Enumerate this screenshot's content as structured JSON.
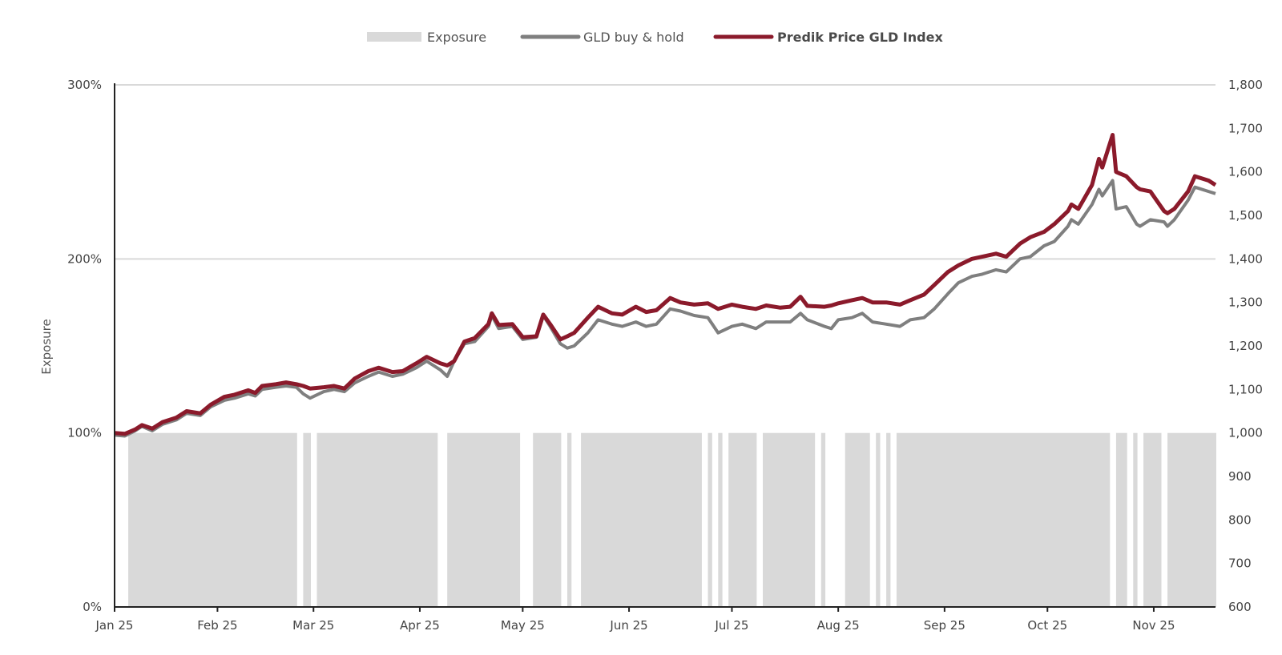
{
  "legend": {
    "exposure_label": "Exposure",
    "buyhold_label": "GLD buy & hold",
    "index_label": "Predik Price GLD Index"
  },
  "colors": {
    "exposure": "#d9d9d9",
    "buyhold": "#7f7f7f",
    "index": "#8b1a2b",
    "grid": "#d9d9d9",
    "axis": "#222222"
  },
  "chart_data": {
    "type": "line",
    "xlabel": "",
    "ylabel": "Exposure",
    "ylim_left": [
      0,
      300
    ],
    "ylim_right": [
      600,
      1800
    ],
    "y_left_ticks": [
      "0%",
      "100%",
      "200%",
      "300%"
    ],
    "y_right_ticks": [
      "600",
      "700",
      "800",
      "900",
      "1,000",
      "1,100",
      "1,200",
      "1,300",
      "1,400",
      "1,500",
      "1,600",
      "1,700",
      "1,800"
    ],
    "x_range": [
      "2025-01-02",
      "2025-11-19"
    ],
    "x_ticks": [
      {
        "date": "2025-01-01",
        "label": "Jan 25"
      },
      {
        "date": "2025-02-01",
        "label": "Feb 25"
      },
      {
        "date": "2025-03-01",
        "label": "Mar 25"
      },
      {
        "date": "2025-04-01",
        "label": "Apr 25"
      },
      {
        "date": "2025-05-01",
        "label": "May 25"
      },
      {
        "date": "2025-06-01",
        "label": "Jun 25"
      },
      {
        "date": "2025-07-01",
        "label": "Jul 25"
      },
      {
        "date": "2025-08-01",
        "label": "Aug 25"
      },
      {
        "date": "2025-09-01",
        "label": "Sep 25"
      },
      {
        "date": "2025-10-01",
        "label": "Oct 25"
      },
      {
        "date": "2025-11-01",
        "label": "Nov 25"
      }
    ],
    "grid": true,
    "legend_position": "top-center",
    "exposure_on": [
      [
        "2025-01-06",
        "2025-02-24"
      ],
      [
        "2025-02-26",
        "2025-02-28"
      ],
      [
        "2025-03-02",
        "2025-04-06"
      ],
      [
        "2025-04-09",
        "2025-04-30"
      ],
      [
        "2025-05-04",
        "2025-05-12"
      ],
      [
        "2025-05-14",
        "2025-05-15"
      ],
      [
        "2025-05-18",
        "2025-06-22"
      ],
      [
        "2025-06-24",
        "2025-06-25"
      ],
      [
        "2025-06-27",
        "2025-06-28"
      ],
      [
        "2025-06-30",
        "2025-07-08"
      ],
      [
        "2025-07-10",
        "2025-07-25"
      ],
      [
        "2025-07-27",
        "2025-07-28"
      ],
      [
        "2025-08-03",
        "2025-08-10"
      ],
      [
        "2025-08-12",
        "2025-08-13"
      ],
      [
        "2025-08-15",
        "2025-08-16"
      ],
      [
        "2025-08-18",
        "2025-10-19"
      ],
      [
        "2025-10-21",
        "2025-10-24"
      ],
      [
        "2025-10-26",
        "2025-10-27"
      ],
      [
        "2025-10-29",
        "2025-11-03"
      ],
      [
        "2025-11-05",
        "2025-11-19"
      ]
    ],
    "series": [
      {
        "name": "GLD buy & hold",
        "axis": "right",
        "points": [
          [
            "2025-01-02",
            995
          ],
          [
            "2025-01-05",
            993
          ],
          [
            "2025-01-08",
            1005
          ],
          [
            "2025-01-10",
            1015
          ],
          [
            "2025-01-13",
            1005
          ],
          [
            "2025-01-16",
            1020
          ],
          [
            "2025-01-20",
            1030
          ],
          [
            "2025-01-23",
            1045
          ],
          [
            "2025-01-27",
            1040
          ],
          [
            "2025-01-30",
            1060
          ],
          [
            "2025-02-03",
            1075
          ],
          [
            "2025-02-06",
            1080
          ],
          [
            "2025-02-10",
            1090
          ],
          [
            "2025-02-12",
            1085
          ],
          [
            "2025-02-14",
            1100
          ],
          [
            "2025-02-18",
            1105
          ],
          [
            "2025-02-21",
            1108
          ],
          [
            "2025-02-24",
            1105
          ],
          [
            "2025-02-26",
            1090
          ],
          [
            "2025-02-28",
            1080
          ],
          [
            "2025-03-04",
            1095
          ],
          [
            "2025-03-07",
            1100
          ],
          [
            "2025-03-10",
            1095
          ],
          [
            "2025-03-13",
            1115
          ],
          [
            "2025-03-17",
            1130
          ],
          [
            "2025-03-20",
            1140
          ],
          [
            "2025-03-24",
            1130
          ],
          [
            "2025-03-27",
            1135
          ],
          [
            "2025-03-31",
            1150
          ],
          [
            "2025-04-03",
            1165
          ],
          [
            "2025-04-07",
            1145
          ],
          [
            "2025-04-09",
            1130
          ],
          [
            "2025-04-11",
            1165
          ],
          [
            "2025-04-14",
            1205
          ],
          [
            "2025-04-17",
            1210
          ],
          [
            "2025-04-21",
            1245
          ],
          [
            "2025-04-22",
            1270
          ],
          [
            "2025-04-24",
            1240
          ],
          [
            "2025-04-28",
            1245
          ],
          [
            "2025-05-01",
            1215
          ],
          [
            "2025-05-05",
            1220
          ],
          [
            "2025-05-07",
            1270
          ],
          [
            "2025-05-09",
            1245
          ],
          [
            "2025-05-12",
            1205
          ],
          [
            "2025-05-14",
            1195
          ],
          [
            "2025-05-16",
            1200
          ],
          [
            "2025-05-20",
            1230
          ],
          [
            "2025-05-23",
            1260
          ],
          [
            "2025-05-27",
            1250
          ],
          [
            "2025-05-30",
            1245
          ],
          [
            "2025-06-03",
            1255
          ],
          [
            "2025-06-06",
            1245
          ],
          [
            "2025-06-09",
            1250
          ],
          [
            "2025-06-13",
            1285
          ],
          [
            "2025-06-16",
            1280
          ],
          [
            "2025-06-20",
            1270
          ],
          [
            "2025-06-24",
            1265
          ],
          [
            "2025-06-27",
            1230
          ],
          [
            "2025-07-01",
            1245
          ],
          [
            "2025-07-04",
            1250
          ],
          [
            "2025-07-08",
            1240
          ],
          [
            "2025-07-11",
            1255
          ],
          [
            "2025-07-15",
            1255
          ],
          [
            "2025-07-18",
            1255
          ],
          [
            "2025-07-21",
            1275
          ],
          [
            "2025-07-23",
            1260
          ],
          [
            "2025-07-28",
            1245
          ],
          [
            "2025-07-30",
            1240
          ],
          [
            "2025-08-01",
            1260
          ],
          [
            "2025-08-05",
            1265
          ],
          [
            "2025-08-08",
            1275
          ],
          [
            "2025-08-11",
            1255
          ],
          [
            "2025-08-15",
            1250
          ],
          [
            "2025-08-19",
            1245
          ],
          [
            "2025-08-22",
            1260
          ],
          [
            "2025-08-26",
            1265
          ],
          [
            "2025-08-29",
            1285
          ],
          [
            "2025-09-02",
            1320
          ],
          [
            "2025-09-05",
            1345
          ],
          [
            "2025-09-09",
            1360
          ],
          [
            "2025-09-12",
            1365
          ],
          [
            "2025-09-16",
            1375
          ],
          [
            "2025-09-19",
            1370
          ],
          [
            "2025-09-23",
            1400
          ],
          [
            "2025-09-26",
            1405
          ],
          [
            "2025-09-30",
            1430
          ],
          [
            "2025-10-03",
            1440
          ],
          [
            "2025-10-07",
            1475
          ],
          [
            "2025-10-08",
            1490
          ],
          [
            "2025-10-10",
            1480
          ],
          [
            "2025-10-14",
            1525
          ],
          [
            "2025-10-16",
            1560
          ],
          [
            "2025-10-17",
            1545
          ],
          [
            "2025-10-20",
            1580
          ],
          [
            "2025-10-21",
            1515
          ],
          [
            "2025-10-24",
            1520
          ],
          [
            "2025-10-27",
            1480
          ],
          [
            "2025-10-28",
            1475
          ],
          [
            "2025-10-31",
            1490
          ],
          [
            "2025-11-04",
            1485
          ],
          [
            "2025-11-05",
            1475
          ],
          [
            "2025-11-07",
            1490
          ],
          [
            "2025-11-11",
            1535
          ],
          [
            "2025-11-13",
            1565
          ],
          [
            "2025-11-17",
            1555
          ],
          [
            "2025-11-19",
            1550
          ]
        ]
      },
      {
        "name": "Predik Price GLD Index",
        "axis": "right",
        "points": [
          [
            "2025-01-02",
            1000
          ],
          [
            "2025-01-05",
            998
          ],
          [
            "2025-01-08",
            1008
          ],
          [
            "2025-01-10",
            1018
          ],
          [
            "2025-01-13",
            1010
          ],
          [
            "2025-01-16",
            1025
          ],
          [
            "2025-01-20",
            1035
          ],
          [
            "2025-01-23",
            1050
          ],
          [
            "2025-01-27",
            1045
          ],
          [
            "2025-01-30",
            1065
          ],
          [
            "2025-02-03",
            1083
          ],
          [
            "2025-02-06",
            1088
          ],
          [
            "2025-02-10",
            1098
          ],
          [
            "2025-02-12",
            1092
          ],
          [
            "2025-02-14",
            1108
          ],
          [
            "2025-02-18",
            1112
          ],
          [
            "2025-02-21",
            1116
          ],
          [
            "2025-02-24",
            1112
          ],
          [
            "2025-02-26",
            1108
          ],
          [
            "2025-02-28",
            1102
          ],
          [
            "2025-03-04",
            1105
          ],
          [
            "2025-03-07",
            1108
          ],
          [
            "2025-03-10",
            1102
          ],
          [
            "2025-03-13",
            1125
          ],
          [
            "2025-03-17",
            1142
          ],
          [
            "2025-03-20",
            1150
          ],
          [
            "2025-03-24",
            1140
          ],
          [
            "2025-03-27",
            1142
          ],
          [
            "2025-03-31",
            1160
          ],
          [
            "2025-04-03",
            1175
          ],
          [
            "2025-04-07",
            1160
          ],
          [
            "2025-04-09",
            1155
          ],
          [
            "2025-04-11",
            1165
          ],
          [
            "2025-04-14",
            1210
          ],
          [
            "2025-04-17",
            1218
          ],
          [
            "2025-04-21",
            1250
          ],
          [
            "2025-04-22",
            1275
          ],
          [
            "2025-04-24",
            1248
          ],
          [
            "2025-04-28",
            1250
          ],
          [
            "2025-05-01",
            1220
          ],
          [
            "2025-05-05",
            1222
          ],
          [
            "2025-05-07",
            1272
          ],
          [
            "2025-05-09",
            1250
          ],
          [
            "2025-05-12",
            1215
          ],
          [
            "2025-05-14",
            1222
          ],
          [
            "2025-05-16",
            1230
          ],
          [
            "2025-05-20",
            1265
          ],
          [
            "2025-05-23",
            1290
          ],
          [
            "2025-05-27",
            1275
          ],
          [
            "2025-05-30",
            1272
          ],
          [
            "2025-06-03",
            1290
          ],
          [
            "2025-06-06",
            1278
          ],
          [
            "2025-06-09",
            1282
          ],
          [
            "2025-06-13",
            1310
          ],
          [
            "2025-06-16",
            1300
          ],
          [
            "2025-06-20",
            1295
          ],
          [
            "2025-06-24",
            1298
          ],
          [
            "2025-06-27",
            1285
          ],
          [
            "2025-07-01",
            1295
          ],
          [
            "2025-07-04",
            1290
          ],
          [
            "2025-07-08",
            1285
          ],
          [
            "2025-07-11",
            1293
          ],
          [
            "2025-07-15",
            1288
          ],
          [
            "2025-07-18",
            1290
          ],
          [
            "2025-07-21",
            1313
          ],
          [
            "2025-07-23",
            1292
          ],
          [
            "2025-07-28",
            1290
          ],
          [
            "2025-07-30",
            1293
          ],
          [
            "2025-08-01",
            1298
          ],
          [
            "2025-08-05",
            1305
          ],
          [
            "2025-08-08",
            1310
          ],
          [
            "2025-08-11",
            1300
          ],
          [
            "2025-08-15",
            1300
          ],
          [
            "2025-08-19",
            1295
          ],
          [
            "2025-08-22",
            1305
          ],
          [
            "2025-08-26",
            1318
          ],
          [
            "2025-08-29",
            1340
          ],
          [
            "2025-09-02",
            1370
          ],
          [
            "2025-09-05",
            1385
          ],
          [
            "2025-09-09",
            1400
          ],
          [
            "2025-09-12",
            1405
          ],
          [
            "2025-09-16",
            1412
          ],
          [
            "2025-09-19",
            1405
          ],
          [
            "2025-09-23",
            1435
          ],
          [
            "2025-09-26",
            1450
          ],
          [
            "2025-09-30",
            1462
          ],
          [
            "2025-10-03",
            1480
          ],
          [
            "2025-10-07",
            1510
          ],
          [
            "2025-10-08",
            1525
          ],
          [
            "2025-10-10",
            1515
          ],
          [
            "2025-10-14",
            1570
          ],
          [
            "2025-10-16",
            1630
          ],
          [
            "2025-10-17",
            1610
          ],
          [
            "2025-10-20",
            1685
          ],
          [
            "2025-10-21",
            1600
          ],
          [
            "2025-10-24",
            1590
          ],
          [
            "2025-10-27",
            1565
          ],
          [
            "2025-10-28",
            1560
          ],
          [
            "2025-10-31",
            1555
          ],
          [
            "2025-11-04",
            1510
          ],
          [
            "2025-11-05",
            1505
          ],
          [
            "2025-11-07",
            1515
          ],
          [
            "2025-11-11",
            1555
          ],
          [
            "2025-11-13",
            1590
          ],
          [
            "2025-11-17",
            1580
          ],
          [
            "2025-11-19",
            1570
          ]
        ]
      }
    ]
  }
}
